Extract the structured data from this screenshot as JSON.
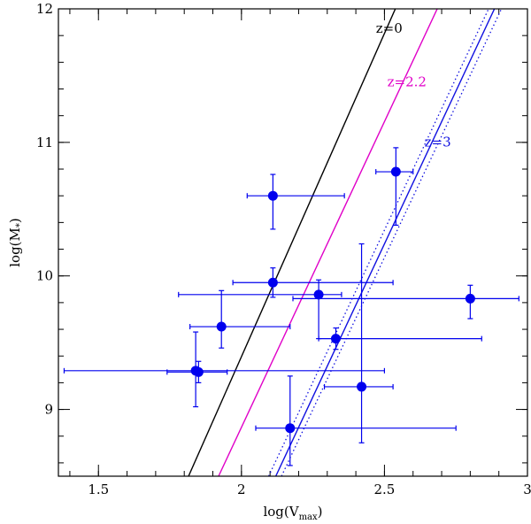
{
  "chart_data": {
    "type": "scatter",
    "title": "",
    "xlabel": "log(V",
    "xlabel_sub": "max",
    "xlabel_close": ")",
    "ylabel": "log(M",
    "ylabel_sub": "*",
    "ylabel_close": ")",
    "xlim": [
      1.36,
      3.0
    ],
    "ylim": [
      8.5,
      12.0
    ],
    "xticks": [
      {
        "value": 1.5,
        "label": "1.5"
      },
      {
        "value": 2.0,
        "label": "2"
      },
      {
        "value": 2.5,
        "label": "2.5"
      },
      {
        "value": 3.0,
        "label": "3"
      }
    ],
    "yticks": [
      {
        "value": 9,
        "label": "9"
      },
      {
        "value": 10,
        "label": "10"
      },
      {
        "value": 11,
        "label": "11"
      },
      {
        "value": 12,
        "label": "12"
      }
    ],
    "x_minor_step": 0.1,
    "y_minor_step": 0.2,
    "points": [
      {
        "x": 1.84,
        "y": 9.29,
        "xerr": [
          1.38,
          2.5
        ],
        "yerr": [
          9.02,
          9.58
        ]
      },
      {
        "x": 1.85,
        "y": 9.28,
        "xerr": [
          1.74,
          1.95
        ],
        "yerr": [
          9.2,
          9.36
        ]
      },
      {
        "x": 1.93,
        "y": 9.62,
        "xerr": [
          1.82,
          2.17
        ],
        "yerr": [
          9.46,
          9.89
        ]
      },
      {
        "x": 2.11,
        "y": 10.6,
        "xerr": [
          2.02,
          2.36
        ],
        "yerr": [
          10.35,
          10.76
        ]
      },
      {
        "x": 2.11,
        "y": 9.95,
        "xerr": [
          1.97,
          2.53
        ],
        "yerr": [
          9.84,
          10.06
        ]
      },
      {
        "x": 2.17,
        "y": 8.86,
        "xerr": [
          2.05,
          2.75
        ],
        "yerr": [
          8.58,
          9.25
        ]
      },
      {
        "x": 2.27,
        "y": 9.86,
        "xerr": [
          1.78,
          2.35
        ],
        "yerr": [
          9.53,
          9.97
        ]
      },
      {
        "x": 2.33,
        "y": 9.53,
        "xerr": [
          2.27,
          2.84
        ],
        "yerr": [
          9.45,
          9.61
        ]
      },
      {
        "x": 2.42,
        "y": 9.17,
        "xerr": [
          2.29,
          2.53
        ],
        "yerr": [
          8.75,
          10.24
        ]
      },
      {
        "x": 2.54,
        "y": 10.78,
        "xerr": [
          2.47,
          2.6
        ],
        "yerr": [
          10.38,
          10.96
        ]
      },
      {
        "x": 2.8,
        "y": 9.83,
        "xerr": [
          2.18,
          2.97
        ],
        "yerr": [
          9.68,
          9.93
        ]
      }
    ],
    "lines": [
      {
        "name": "z=0",
        "label": "z=0",
        "color": "#000000",
        "style": "solid",
        "from": [
          1.815,
          8.5
        ],
        "to": [
          2.6,
          12.3
        ],
        "label_at": [
          2.47,
          11.82
        ]
      },
      {
        "name": "z=2.2",
        "label": "z=2.2",
        "color": "#e000c8",
        "style": "solid",
        "from": [
          1.92,
          8.5
        ],
        "to": [
          2.75,
          12.3
        ],
        "label_at": [
          2.51,
          11.42
        ]
      },
      {
        "name": "z=3",
        "label": "z=3",
        "color": "#1010e0",
        "style": "solid",
        "from": [
          2.12,
          8.5
        ],
        "to": [
          2.95,
          12.3
        ],
        "label_at": [
          2.64,
          10.97
        ]
      },
      {
        "name": "z=3-upper",
        "label": "",
        "color": "#1010e0",
        "style": "dotted",
        "from": [
          2.095,
          8.5
        ],
        "to": [
          2.93,
          12.3
        ]
      },
      {
        "name": "z=3-lower",
        "label": "",
        "color": "#1010e0",
        "style": "dotted",
        "from": [
          2.14,
          8.5
        ],
        "to": [
          2.975,
          12.3
        ]
      }
    ],
    "colors": {
      "points": "#0000ee",
      "axes": "#000000"
    },
    "grid": false,
    "legend": "none"
  }
}
